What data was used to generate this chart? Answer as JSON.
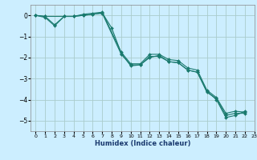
{
  "title": "",
  "xlabel": "Humidex (Indice chaleur)",
  "bg_color": "#cceeff",
  "grid_color": "#aacccc",
  "line_color": "#1a7a6e",
  "xlim": [
    -0.5,
    23
  ],
  "ylim": [
    -5.5,
    0.5
  ],
  "yticks": [
    0,
    -1,
    -2,
    -3,
    -4,
    -5
  ],
  "xticks": [
    0,
    1,
    2,
    3,
    4,
    5,
    6,
    7,
    8,
    9,
    10,
    11,
    12,
    13,
    14,
    15,
    16,
    17,
    18,
    19,
    20,
    21,
    22,
    23
  ],
  "line1_x": [
    0,
    1,
    3,
    4,
    5,
    6,
    7,
    9,
    10,
    11,
    12,
    13,
    14,
    15,
    16,
    17,
    18,
    19,
    20,
    21,
    22
  ],
  "line1_y": [
    0,
    -0.05,
    -0.05,
    -0.05,
    0.05,
    0.1,
    0.15,
    -1.75,
    -2.3,
    -2.3,
    -1.85,
    -1.85,
    -2.1,
    -2.15,
    -2.5,
    -2.6,
    -3.55,
    -3.9,
    -4.65,
    -4.55,
    -4.6
  ],
  "line2_x": [
    0,
    1,
    2,
    3,
    4,
    5,
    6,
    7,
    9,
    10,
    11,
    12,
    13,
    14,
    15,
    16,
    17,
    18,
    19,
    20,
    21,
    22
  ],
  "line2_y": [
    0,
    -0.1,
    -0.5,
    -0.05,
    -0.05,
    0.0,
    0.05,
    0.1,
    -1.85,
    -2.35,
    -2.35,
    -2.0,
    -1.9,
    -2.2,
    -2.25,
    -2.6,
    -2.7,
    -3.65,
    -3.95,
    -4.75,
    -4.65,
    -4.65
  ],
  "line3_x": [
    0,
    1,
    2,
    3,
    4,
    5,
    6,
    7,
    8,
    9,
    10,
    11,
    12,
    13,
    14,
    15,
    16,
    17,
    18,
    19,
    20,
    21,
    22
  ],
  "line3_y": [
    0,
    -0.05,
    -0.45,
    -0.05,
    -0.05,
    0.0,
    0.05,
    0.12,
    -0.6,
    -1.8,
    -2.4,
    -2.35,
    -1.95,
    -1.95,
    -2.2,
    -2.25,
    -2.6,
    -2.7,
    -3.6,
    -4.0,
    -4.85,
    -4.75,
    -4.55
  ]
}
